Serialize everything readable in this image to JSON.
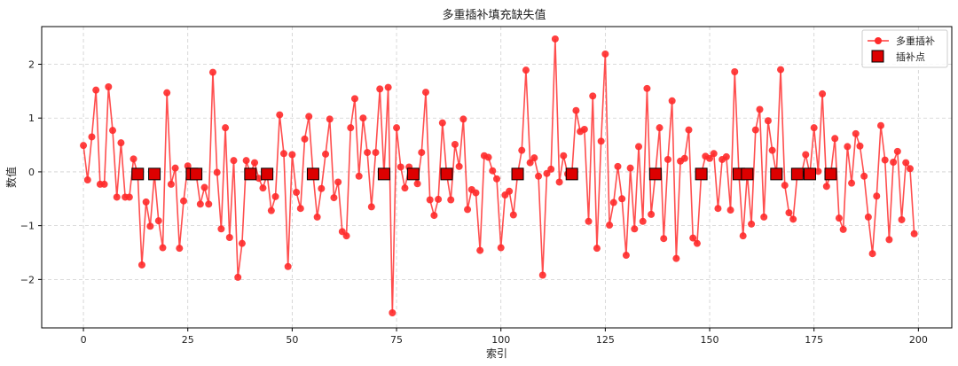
{
  "chart_data": {
    "type": "line",
    "title": "多重插补填充缺失值",
    "xlabel": "索引",
    "ylabel": "数值",
    "xlim": [
      -10,
      208
    ],
    "ylim": [
      -2.9,
      2.7
    ],
    "xticks": [
      0,
      25,
      50,
      75,
      100,
      125,
      150,
      175,
      200
    ],
    "yticks": [
      -2,
      -1,
      0,
      1,
      2
    ],
    "grid": true,
    "legend_position": "top-right",
    "colors": {
      "line": "#ff3b3b",
      "marker_fill": "#dd0000",
      "marker_edge": "#000000"
    },
    "series": [
      {
        "name": "多重插补",
        "style": "line-with-circles",
        "values": [
          0.49,
          -0.15,
          0.65,
          1.52,
          -0.23,
          -0.23,
          1.58,
          0.77,
          -0.47,
          0.54,
          -0.47,
          -0.47,
          0.24,
          -0.04,
          -1.73,
          -0.56,
          -1.01,
          -0.04,
          -0.91,
          -1.41,
          1.47,
          -0.23,
          0.07,
          -1.42,
          -0.54,
          0.11,
          -0.04,
          -0.04,
          -0.6,
          -0.29,
          -0.6,
          1.85,
          -0.01,
          -1.06,
          0.82,
          -1.22,
          0.21,
          -1.96,
          -1.33,
          0.21,
          -0.04,
          0.17,
          -0.12,
          -0.3,
          -0.04,
          -0.72,
          -0.46,
          1.06,
          0.34,
          -1.76,
          0.32,
          -0.38,
          -0.68,
          0.61,
          1.03,
          -0.04,
          -0.84,
          -0.31,
          0.33,
          0.98,
          -0.48,
          -0.19,
          -1.11,
          -1.19,
          0.82,
          1.36,
          -0.08,
          1.0,
          0.36,
          -0.65,
          0.36,
          1.54,
          -0.04,
          1.57,
          -2.62,
          0.82,
          0.09,
          -0.3,
          0.09,
          -0.04,
          -0.22,
          0.36,
          1.48,
          -0.52,
          -0.81,
          -0.51,
          0.91,
          -0.04,
          -0.52,
          0.51,
          0.1,
          0.98,
          -0.7,
          -0.33,
          -0.39,
          -1.46,
          0.3,
          0.27,
          0.02,
          -0.13,
          -1.41,
          -0.43,
          -0.36,
          -0.8,
          -0.04,
          0.4,
          1.89,
          0.17,
          0.26,
          -0.08,
          -1.92,
          -0.03,
          0.05,
          2.47,
          -0.19,
          0.3,
          -0.04,
          -0.04,
          1.14,
          0.75,
          0.79,
          -0.92,
          1.41,
          -1.42,
          0.57,
          2.19,
          -0.99,
          -0.57,
          0.1,
          -0.5,
          -1.55,
          0.07,
          -1.06,
          0.47,
          -0.92,
          1.55,
          -0.79,
          -0.04,
          0.82,
          -1.24,
          0.23,
          1.32,
          -1.61,
          0.2,
          0.25,
          0.78,
          -1.23,
          -1.33,
          -0.04,
          0.29,
          0.25,
          0.34,
          -0.68,
          0.23,
          0.28,
          -0.71,
          1.86,
          -0.04,
          -1.19,
          -0.04,
          -0.97,
          0.78,
          1.16,
          -0.84,
          0.95,
          0.4,
          -0.04,
          1.9,
          -0.25,
          -0.76,
          -0.88,
          -0.04,
          -0.04,
          0.32,
          -0.04,
          0.82,
          0.01,
          1.45,
          -0.27,
          -0.04,
          0.62,
          -0.86,
          -1.07,
          0.47,
          -0.21,
          0.71,
          0.48,
          -0.08,
          -0.84,
          -1.52,
          -0.45,
          0.86,
          0.22,
          -1.26,
          0.18,
          0.38,
          -0.89,
          0.17,
          0.06,
          -1.15
        ]
      },
      {
        "name": "插补点",
        "style": "square-markers",
        "x": [
          13,
          17,
          26,
          27,
          40,
          44,
          55,
          72,
          79,
          87,
          104,
          117,
          137,
          148,
          157,
          159,
          166,
          171,
          174,
          179
        ],
        "values": [
          -0.04,
          -0.04,
          -0.04,
          -0.04,
          -0.04,
          -0.04,
          -0.04,
          -0.04,
          -0.04,
          -0.04,
          -0.04,
          -0.04,
          -0.04,
          -0.04,
          -0.04,
          -0.04,
          -0.04,
          -0.04,
          -0.04,
          -0.04
        ]
      }
    ]
  }
}
